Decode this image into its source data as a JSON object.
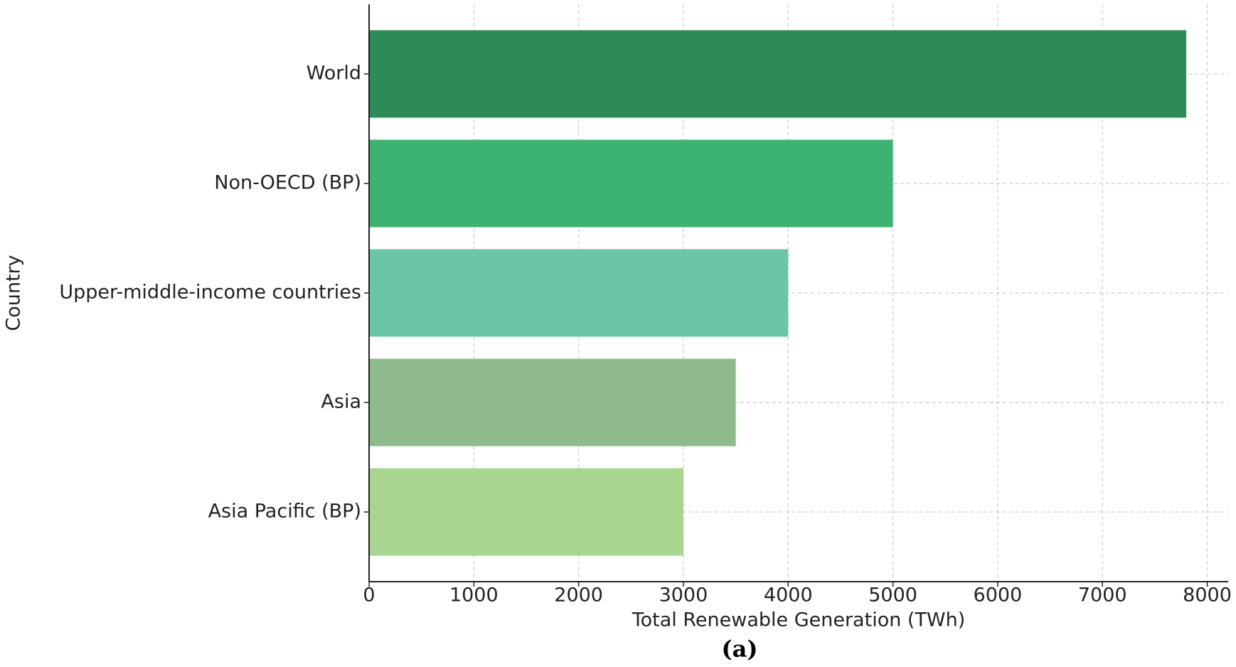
{
  "chart_data": {
    "type": "hbar",
    "categories": [
      "World",
      "Non-OECD (BP)",
      "Upper-middle-income countries",
      "Asia",
      "Asia Pacific (BP)"
    ],
    "values": [
      7800,
      5000,
      4000,
      3500,
      3000
    ],
    "colors": [
      "#2e8b57",
      "#3cb371",
      "#6bc5a6",
      "#8fbb8c",
      "#a8d58f"
    ],
    "xlabel": "Total Renewable Generation (TWh)",
    "ylabel": "Country",
    "caption": "(a)",
    "xlim": [
      0,
      8200
    ],
    "xticks": [
      0,
      1000,
      2000,
      3000,
      4000,
      5000,
      6000,
      7000,
      8000
    ],
    "grid": true
  }
}
